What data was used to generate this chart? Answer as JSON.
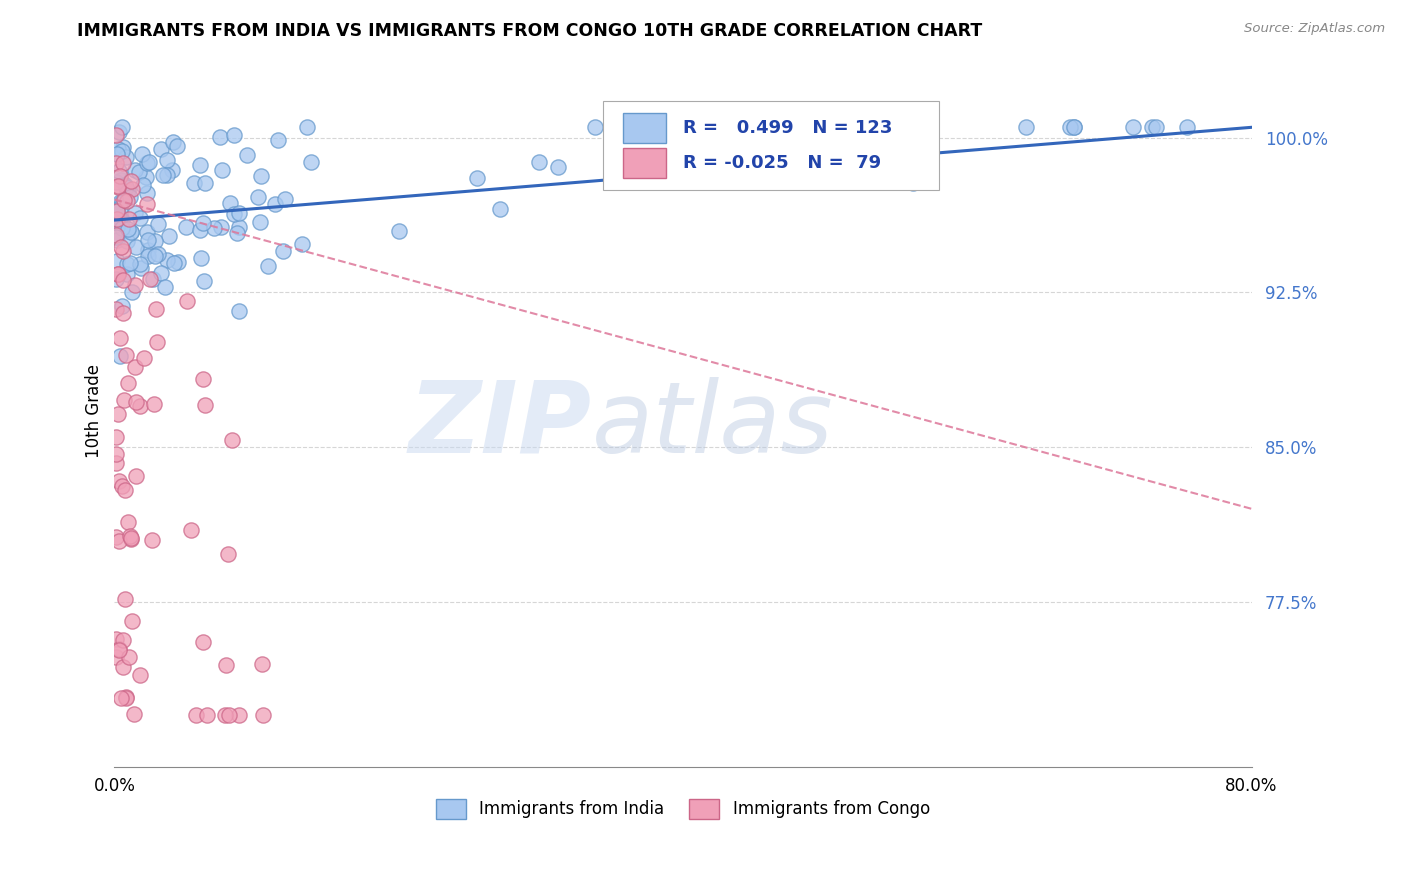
{
  "title": "IMMIGRANTS FROM INDIA VS IMMIGRANTS FROM CONGO 10TH GRADE CORRELATION CHART",
  "source": "Source: ZipAtlas.com",
  "ylabel": "10th Grade",
  "ytick_labels": [
    "100.0%",
    "92.5%",
    "85.0%",
    "77.5%"
  ],
  "ytick_values": [
    1.0,
    0.925,
    0.85,
    0.775
  ],
  "xmin": 0.0,
  "xmax": 0.8,
  "ymin": 0.695,
  "ymax": 1.04,
  "india_color": "#a8c8f0",
  "india_edge_color": "#6699cc",
  "congo_color": "#f0a0b8",
  "congo_edge_color": "#cc6688",
  "india_line_color": "#3366bb",
  "congo_line_color": "#dd7799",
  "india_R": 0.499,
  "india_N": 123,
  "congo_R": -0.025,
  "congo_N": 79,
  "legend_label_india": "Immigrants from India",
  "legend_label_congo": "Immigrants from Congo",
  "background_color": "#ffffff",
  "grid_color": "#bbbbbb",
  "watermark_zip": "ZIP",
  "watermark_atlas": "atlas",
  "india_line_y0": 0.96,
  "india_line_y1": 1.005,
  "congo_line_y0": 0.97,
  "congo_line_y1": 0.82
}
